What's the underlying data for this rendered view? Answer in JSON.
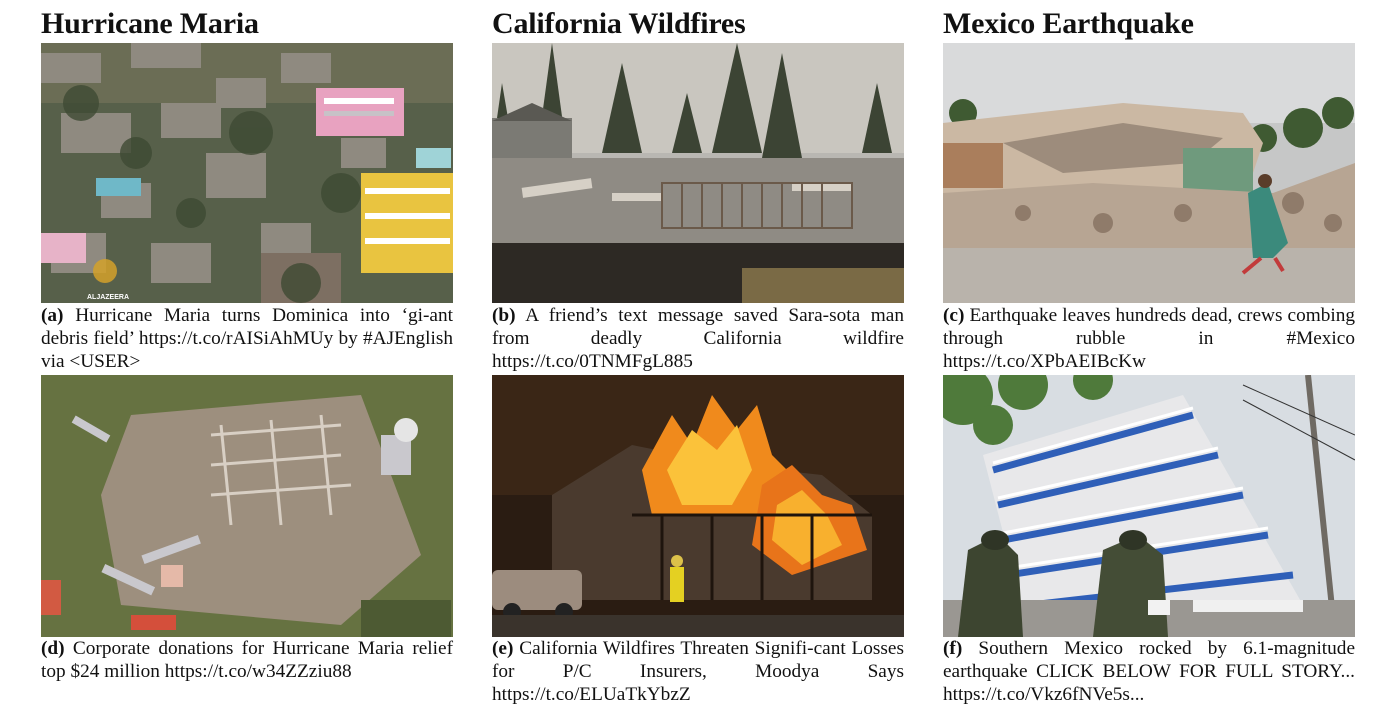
{
  "columns": [
    {
      "title": "Hurricane Maria",
      "items": [
        {
          "tag": "(a)",
          "caption": "Hurricane Maria turns Dominica into ‘gi-ant debris field’ https://t.co/rAISiAhMUy by #AJEnglish via <USER>",
          "watermark": "ALJAZEERA"
        },
        {
          "tag": "(d)",
          "caption": "Corporate donations for Hurricane Maria relief top $24 million https://t.co/w34ZZziu88"
        }
      ]
    },
    {
      "title": "California Wildfires",
      "items": [
        {
          "tag": "(b)",
          "caption": "A friend’s text message saved Sara-sota man from deadly California wildfire https://t.co/0TNMFgL885"
        },
        {
          "tag": "(e)",
          "caption": "California Wildfires Threaten Signifi-cant Losses for P/C Insurers, Moodya Says https://t.co/ELUaTkYbzZ"
        }
      ]
    },
    {
      "title": "Mexico Earthquake",
      "items": [
        {
          "tag": "(c)",
          "caption": "Earthquake leaves hundreds dead, crews combing through rubble in #Mexico https://t.co/XPbAEIBcKw"
        },
        {
          "tag": "(f)",
          "caption": "Southern Mexico rocked by 6.1-magnitude earthquake CLICK BELOW FOR FULL STORY... https://t.co/Vkz6fNVe5s..."
        }
      ]
    }
  ],
  "colors": {
    "hillside_green": "#5d6a4a",
    "smoke_sky": "#b9b7b2",
    "fire_orange": "#f08a1c",
    "rubble_tan": "#b7a593",
    "building_blue": "#2f5fb8"
  }
}
